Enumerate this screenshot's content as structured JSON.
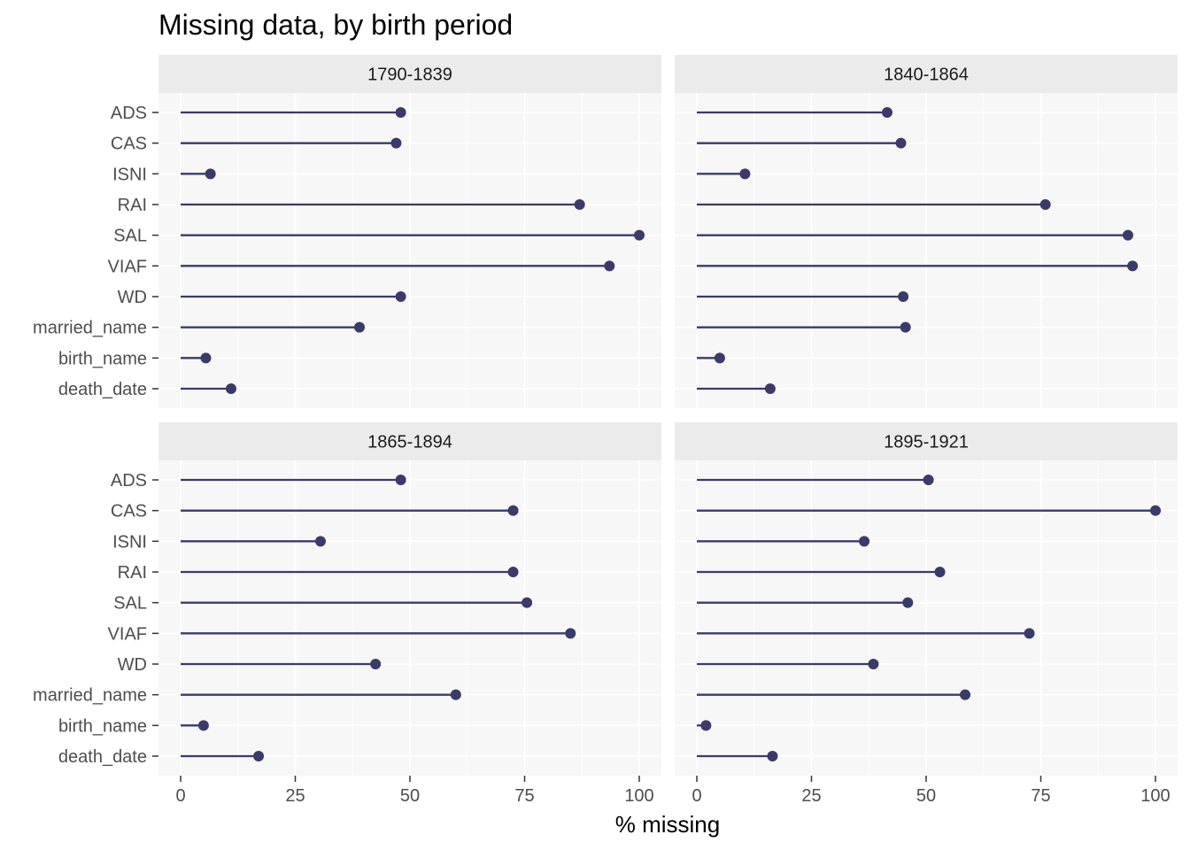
{
  "chart_data": {
    "type": "lollipop",
    "title": "Missing data, by birth period",
    "xlabel": "% missing",
    "ylabel": "",
    "xlim": [
      0,
      100
    ],
    "x_ticks": [
      "0",
      "25",
      "50",
      "75",
      "100"
    ],
    "x_tick_values": [
      0,
      25,
      50,
      75,
      100
    ],
    "categories": [
      "ADS",
      "CAS",
      "ISNI",
      "RAI",
      "SAL",
      "VIAF",
      "WD",
      "married_name",
      "birth_name",
      "death_date"
    ],
    "color": "#3b3a6b",
    "grid": true,
    "facets": [
      {
        "label": "1790-1839",
        "values": [
          48,
          47,
          6.5,
          87,
          100,
          93.5,
          48,
          39,
          5.5,
          11
        ]
      },
      {
        "label": "1840-1864",
        "values": [
          41.5,
          44.5,
          10.5,
          76,
          94,
          95,
          45,
          45.5,
          5,
          16
        ]
      },
      {
        "label": "1865-1894",
        "values": [
          48,
          72.5,
          30.5,
          72.5,
          75.5,
          85,
          42.5,
          60,
          5,
          17
        ]
      },
      {
        "label": "1895-1921",
        "values": [
          50.5,
          100,
          36.5,
          53,
          46,
          72.5,
          38.5,
          58.5,
          2,
          16.5
        ]
      }
    ]
  }
}
